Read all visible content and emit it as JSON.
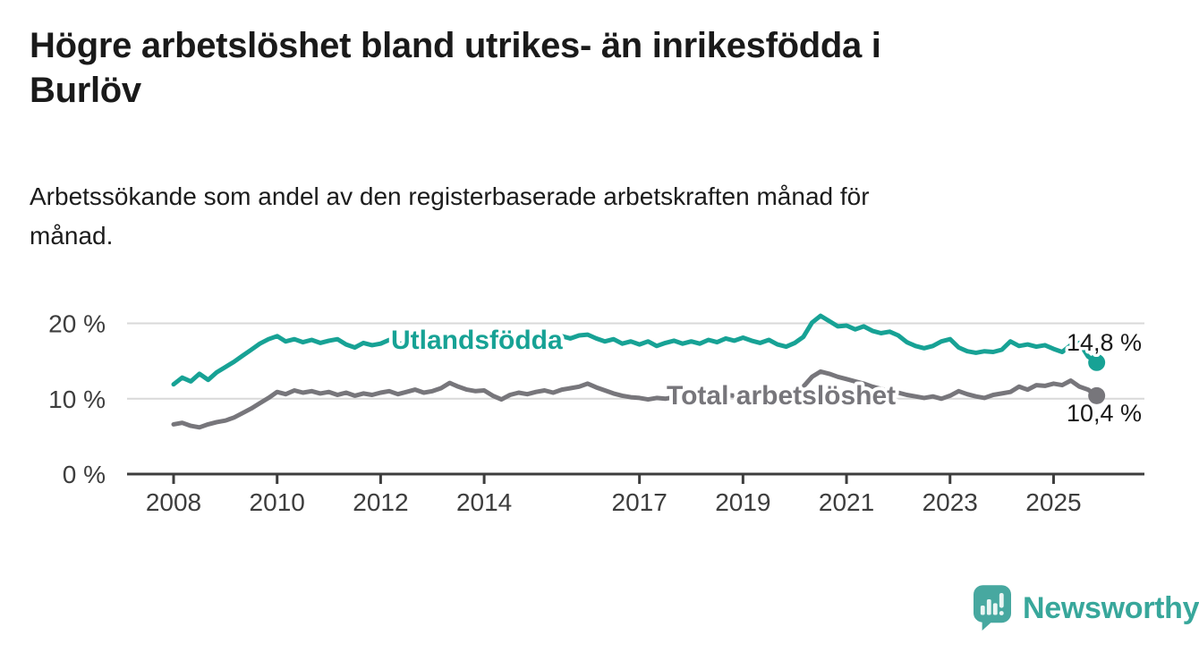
{
  "header": {
    "title_lines": [
      "Högre arbetslöshet bland utrikes- än inrikesfödda i",
      "Burlöv"
    ],
    "subtitle_lines": [
      "Arbetssökande som andel av den registerbaserade arbetskraften månad för",
      "månad."
    ]
  },
  "chart_data": {
    "type": "line",
    "title": "Högre arbetslöshet bland utrikes- än inrikesfödda i Burlöv",
    "subtitle": "Arbetssökande som andel av den registerbaserade arbetskraften månad för månad.",
    "xlabel": "",
    "ylabel": "",
    "x_unit": "year",
    "x_start": 2008.0,
    "x_step": 0.166667,
    "xlim": [
      2007.1,
      2027.0
    ],
    "ylim": [
      0,
      22
    ],
    "grid": "horizontal",
    "legend_position": "inline",
    "x_ticks": [
      2008,
      2010,
      2012,
      2014,
      2017,
      2019,
      2021,
      2023,
      2025
    ],
    "y_ticks": [
      {
        "value": 0,
        "label": "0 %"
      },
      {
        "value": 10,
        "label": "10 %"
      },
      {
        "value": 20,
        "label": "20 %"
      }
    ],
    "series": [
      {
        "name": "Utlandsfödda",
        "color": "#17a295",
        "end_label": "14,8 %",
        "end_value": 14.8,
        "values": [
          11.9,
          12.8,
          12.3,
          13.3,
          12.5,
          13.5,
          14.2,
          14.9,
          15.7,
          16.5,
          17.3,
          17.9,
          18.3,
          17.6,
          17.9,
          17.5,
          17.8,
          17.4,
          17.7,
          17.9,
          17.2,
          16.8,
          17.4,
          17.1,
          17.3,
          17.8,
          17.2,
          17.5,
          17.9,
          17.4,
          17.7,
          18.1,
          17.5,
          18.2,
          17.8,
          18.0,
          17.6,
          18.2,
          17.3,
          17.7,
          18.0,
          17.6,
          17.9,
          18.2,
          17.8,
          18.3,
          18.0,
          18.4,
          18.5,
          18.0,
          17.6,
          17.9,
          17.3,
          17.6,
          17.2,
          17.6,
          17.0,
          17.4,
          17.7,
          17.3,
          17.6,
          17.3,
          17.8,
          17.5,
          18.0,
          17.7,
          18.1,
          17.7,
          17.4,
          17.8,
          17.2,
          16.9,
          17.4,
          18.2,
          20.1,
          21.0,
          20.3,
          19.6,
          19.7,
          19.2,
          19.6,
          19.0,
          18.7,
          18.9,
          18.4,
          17.5,
          17.0,
          16.7,
          17.0,
          17.6,
          17.9,
          16.8,
          16.3,
          16.1,
          16.3,
          16.2,
          16.5,
          17.6,
          17.0,
          17.2,
          16.9,
          17.1,
          16.6,
          16.2,
          17.1,
          17.4,
          15.6,
          14.8
        ]
      },
      {
        "name": "Total arbetslöshet",
        "color": "#77767b",
        "end_label": "10,4 %",
        "end_value": 10.4,
        "values": [
          6.6,
          6.8,
          6.4,
          6.2,
          6.6,
          6.9,
          7.1,
          7.5,
          8.1,
          8.7,
          9.4,
          10.1,
          10.9,
          10.6,
          11.1,
          10.8,
          11.0,
          10.7,
          10.9,
          10.5,
          10.8,
          10.4,
          10.7,
          10.5,
          10.8,
          11.0,
          10.6,
          10.9,
          11.2,
          10.8,
          11.0,
          11.4,
          12.1,
          11.6,
          11.2,
          11.0,
          11.1,
          10.4,
          9.9,
          10.5,
          10.8,
          10.6,
          10.9,
          11.1,
          10.8,
          11.2,
          11.4,
          11.6,
          12.0,
          11.5,
          11.1,
          10.7,
          10.4,
          10.2,
          10.1,
          9.9,
          10.1,
          10.0,
          10.2,
          10.3,
          10.4,
          10.2,
          10.5,
          10.3,
          10.5,
          10.4,
          10.5,
          10.7,
          10.4,
          10.6,
          10.5,
          10.7,
          10.9,
          11.6,
          12.9,
          13.6,
          13.3,
          12.9,
          12.6,
          12.3,
          12.0,
          11.6,
          11.3,
          11.0,
          10.8,
          10.5,
          10.3,
          10.1,
          10.3,
          10.0,
          10.4,
          11.0,
          10.6,
          10.3,
          10.1,
          10.5,
          10.7,
          10.9,
          11.6,
          11.2,
          11.8,
          11.7,
          12.0,
          11.8,
          12.4,
          11.6,
          11.2,
          10.4
        ]
      }
    ],
    "colors": {
      "accent_teal": "#17a295",
      "series_gray": "#77767b",
      "axis": "#3d3d3d",
      "gridline": "#d9d9d9",
      "value_label": "#1a1a1a"
    }
  },
  "branding": {
    "logo_text": "Newsworthy",
    "logo_icon": "newsworthy-chart-bubble-icon",
    "logo_color": "#38a79b",
    "icon_color": "#47a8a0"
  }
}
